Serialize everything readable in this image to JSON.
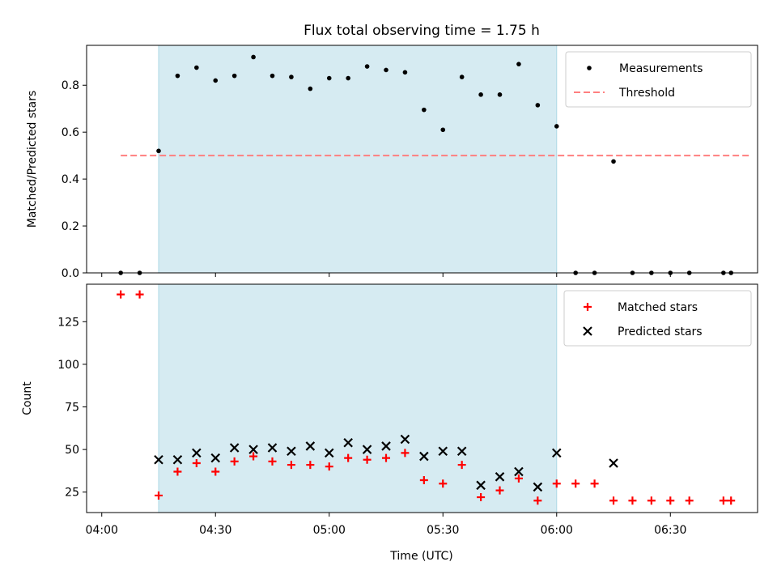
{
  "chart_data": {
    "title": "Flux total observing time = 1.75 h",
    "shaded_interval": [
      "04:15",
      "06:00"
    ],
    "shade_color": "#add8e6",
    "xlabel": "Time (UTC)",
    "xticks": [
      "04:00",
      "04:30",
      "05:00",
      "05:30",
      "06:00",
      "06:30"
    ],
    "xlim": [
      "03:56",
      "06:53"
    ],
    "panels": [
      {
        "type": "scatter",
        "ylabel": "Matched/Predicted stars",
        "ylim": [
          0,
          0.97
        ],
        "yticks": [
          "0.0",
          "0.2",
          "0.4",
          "0.6",
          "0.8"
        ],
        "legend": {
          "position": "top-right",
          "entries": [
            "Measurements",
            "Threshold"
          ]
        },
        "threshold": {
          "name": "Threshold",
          "value": 0.5,
          "x_range": [
            "04:05",
            "06:51"
          ],
          "color": "#ff7f7f"
        },
        "series": [
          {
            "name": "Measurements",
            "color": "#000000",
            "x": [
              "04:05",
              "04:10",
              "04:15",
              "04:20",
              "04:25",
              "04:30",
              "04:35",
              "04:40",
              "04:45",
              "04:50",
              "04:55",
              "05:00",
              "05:05",
              "05:10",
              "05:15",
              "05:20",
              "05:25",
              "05:30",
              "05:35",
              "05:40",
              "05:45",
              "05:50",
              "05:55",
              "06:00",
              "06:05",
              "06:10",
              "06:15",
              "06:20",
              "06:25",
              "06:30",
              "06:35",
              "06:44",
              "06:46"
            ],
            "y": [
              0.0,
              0.0,
              0.52,
              0.84,
              0.875,
              0.82,
              0.84,
              0.92,
              0.84,
              0.835,
              0.785,
              0.83,
              0.83,
              0.88,
              0.865,
              0.855,
              0.695,
              0.61,
              0.835,
              0.76,
              0.76,
              0.89,
              0.715,
              0.625,
              0.0,
              0.0,
              0.475,
              0.0,
              0.0,
              0.0,
              0.0,
              0.0,
              0.0
            ]
          }
        ]
      },
      {
        "type": "scatter",
        "ylabel": "Count",
        "ylim": [
          13,
          147
        ],
        "yticks": [
          "25",
          "50",
          "75",
          "100",
          "125"
        ],
        "legend": {
          "position": "top-right",
          "entries": [
            "Matched stars",
            "Predicted stars"
          ]
        },
        "series": [
          {
            "name": "Matched stars",
            "color": "#ff0000",
            "marker": "plus",
            "x": [
              "04:05",
              "04:10",
              "04:15",
              "04:20",
              "04:25",
              "04:30",
              "04:35",
              "04:40",
              "04:45",
              "04:50",
              "04:55",
              "05:00",
              "05:05",
              "05:10",
              "05:15",
              "05:20",
              "05:25",
              "05:30",
              "05:35",
              "05:40",
              "05:45",
              "05:50",
              "05:55",
              "06:00",
              "06:05",
              "06:10",
              "06:15",
              "06:20",
              "06:25",
              "06:30",
              "06:35",
              "06:44",
              "06:46"
            ],
            "y": [
              141,
              141,
              23,
              37,
              42,
              37,
              43,
              46,
              43,
              41,
              41,
              40,
              45,
              44,
              45,
              48,
              32,
              30,
              41,
              22,
              26,
              33,
              20,
              30,
              30,
              30,
              20,
              20,
              20,
              20,
              20,
              20,
              20
            ]
          },
          {
            "name": "Predicted stars",
            "color": "#000000",
            "marker": "x",
            "x": [
              "04:15",
              "04:20",
              "04:25",
              "04:30",
              "04:35",
              "04:40",
              "04:45",
              "04:50",
              "04:55",
              "05:00",
              "05:05",
              "05:10",
              "05:15",
              "05:20",
              "05:25",
              "05:30",
              "05:35",
              "05:40",
              "05:45",
              "05:50",
              "05:55",
              "06:00",
              "06:15"
            ],
            "y": [
              44,
              44,
              48,
              45,
              51,
              50,
              51,
              49,
              52,
              48,
              54,
              50,
              52,
              56,
              46,
              49,
              49,
              29,
              34,
              37,
              28,
              48,
              42
            ]
          }
        ]
      }
    ]
  }
}
